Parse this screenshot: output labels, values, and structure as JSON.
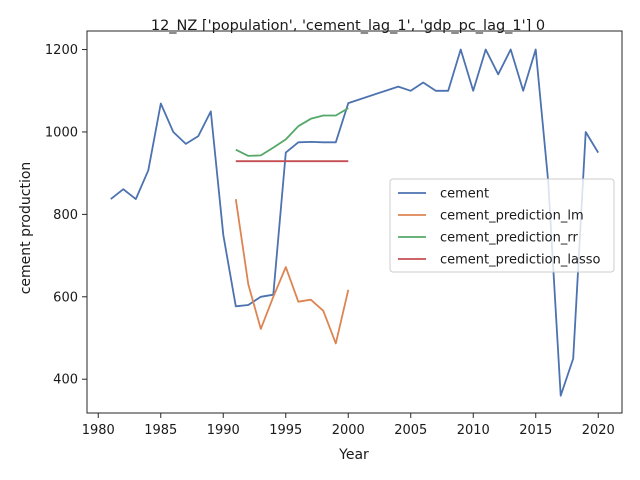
{
  "chart_data": {
    "type": "line",
    "title": "12_NZ ['population', 'cement_lag_1', 'gdp_pc_lag_1'] 0",
    "xlabel": "Year",
    "ylabel": "cement production",
    "xlim": [
      1979.1,
      2021.9
    ],
    "ylim": [
      318,
      1245
    ],
    "xticks": [
      1980,
      1985,
      1990,
      1995,
      2000,
      2005,
      2010,
      2015,
      2020
    ],
    "yticks": [
      400,
      600,
      800,
      1000,
      1200
    ],
    "grid": false,
    "legend_position": "center-right",
    "series": [
      {
        "name": "cement",
        "color": "#4c72b0",
        "x": [
          1981,
          1982,
          1983,
          1984,
          1985,
          1986,
          1987,
          1988,
          1989,
          1990,
          1991,
          1992,
          1993,
          1994,
          1995,
          1996,
          1997,
          1998,
          1999,
          2000,
          2004,
          2005,
          2006,
          2007,
          2008,
          2009,
          2010,
          2011,
          2012,
          2013,
          2014,
          2015,
          2016,
          2017,
          2018,
          2019,
          2020
        ],
        "y": [
          837,
          861,
          837,
          907,
          1069,
          1000,
          971,
          990,
          1050,
          750,
          577,
          580,
          600,
          605,
          950,
          975,
          976,
          975,
          975,
          1070,
          1110,
          1100,
          1120,
          1100,
          1100,
          1200,
          1100,
          1200,
          1140,
          1200,
          1100,
          1200,
          880,
          360,
          450,
          1000,
          950
        ]
      },
      {
        "name": "cement_prediction_lm",
        "color": "#dd8452",
        "x": [
          1991,
          1992,
          1993,
          1994,
          1995,
          1996,
          1997,
          1998,
          1999,
          2000
        ],
        "y": [
          837,
          630,
          522,
          600,
          672,
          588,
          593,
          566,
          487,
          617
        ]
      },
      {
        "name": "cement_prediction_rr",
        "color": "#55a868",
        "x": [
          1991,
          1992,
          1993,
          1994,
          1995,
          1996,
          1997,
          1998,
          1999,
          2000
        ],
        "y": [
          957,
          942,
          943,
          962,
          982,
          1014,
          1032,
          1040,
          1040,
          1058
        ]
      },
      {
        "name": "cement_prediction_lasso",
        "color": "#c44e52",
        "x": [
          1991,
          1992,
          1993,
          1994,
          1995,
          1996,
          1997,
          1998,
          1999,
          2000
        ],
        "y": [
          929,
          929,
          929,
          929,
          929,
          929,
          929,
          929,
          929,
          929
        ]
      }
    ]
  }
}
